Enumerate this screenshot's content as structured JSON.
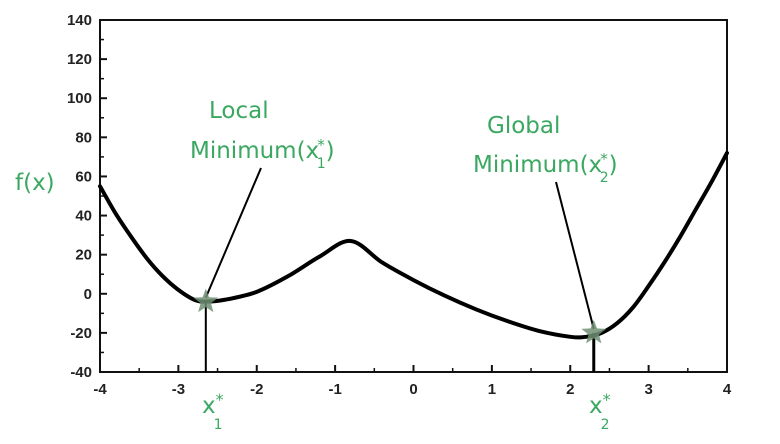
{
  "chart_data": {
    "type": "line",
    "title": "",
    "ylabel": "f(x)",
    "xlabel": "",
    "xlim": [
      -4,
      4
    ],
    "ylim": [
      -40,
      140
    ],
    "xticks": [
      "-4",
      "-3",
      "-2",
      "-1",
      "0",
      "1",
      "2",
      "3",
      "4"
    ],
    "yticks": [
      "140",
      "120",
      "100",
      "80",
      "60",
      "40",
      "20",
      "0",
      "-20",
      "-40"
    ],
    "grid": false,
    "series": [
      {
        "x": [
          -4,
          -3.8,
          -3.6,
          -3.4,
          -3.2,
          -3.0,
          -2.8,
          -2.65,
          -2.4,
          -2.0,
          -1.6,
          -1.2,
          -0.8,
          -0.4,
          0,
          0.4,
          0.8,
          1.2,
          1.6,
          2.0,
          2.2,
          2.4,
          2.6,
          2.8,
          3.0,
          3.2,
          3.4,
          3.6,
          3.8,
          4.0
        ],
        "values": [
          55,
          41,
          29,
          18,
          9,
          2,
          -3,
          -4,
          -3,
          1,
          9,
          19,
          27,
          16,
          7,
          -1,
          -8,
          -14,
          -19,
          -22,
          -22,
          -20,
          -15,
          -7,
          4,
          16,
          29,
          43,
          57,
          72
        ]
      }
    ],
    "annotations": [
      {
        "label": "Local",
        "label_line2": "Minimum(x",
        "subscript": "1",
        "suffix": ")",
        "x": -2.65,
        "y": -4
      },
      {
        "label": "Global",
        "label_line2": "Minimum(x",
        "subscript": "2",
        "suffix": ")",
        "x": 2.3,
        "y": -20
      }
    ],
    "markers": [
      {
        "name": "x",
        "subscript": "1",
        "x": -2.65
      },
      {
        "name": "x",
        "subscript": "2",
        "x": 2.3
      }
    ],
    "colors": {
      "curve": "#000000",
      "annotation": "#3aa860",
      "star": "#6f8f74",
      "axes": "#111111"
    }
  }
}
